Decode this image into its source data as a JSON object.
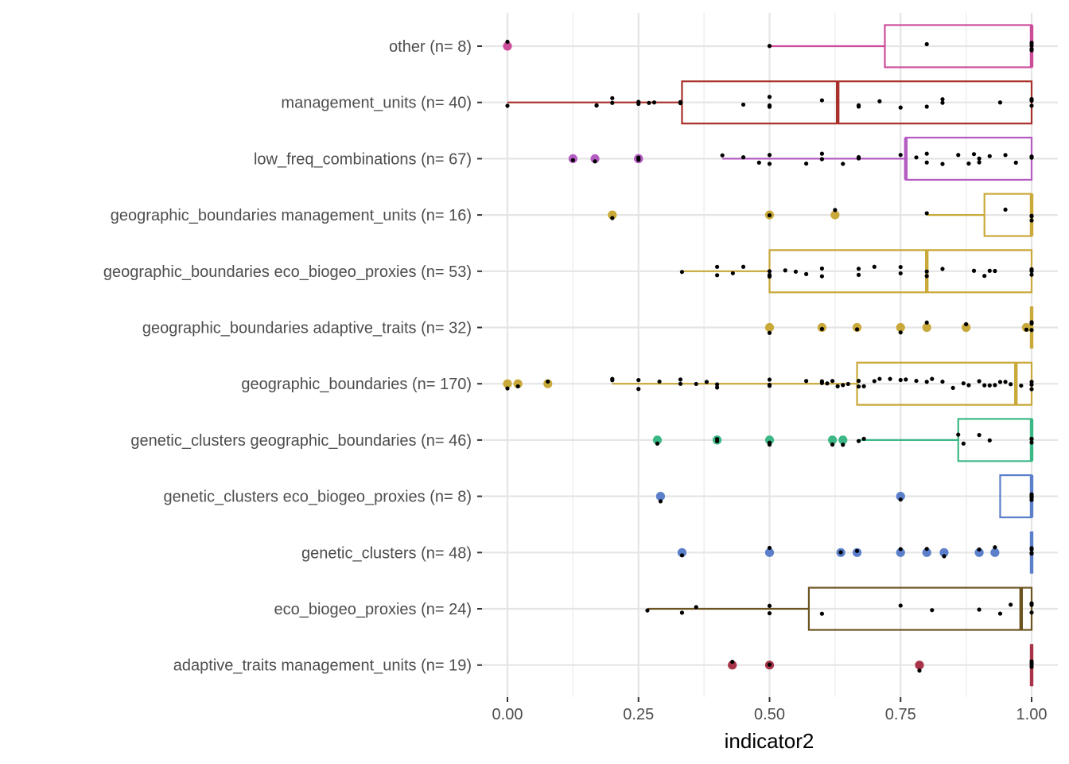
{
  "chart_data": {
    "type": "boxplot",
    "orientation": "horizontal",
    "xlabel": "indicator2",
    "ylabel": "",
    "xlim": [
      0,
      1
    ],
    "xticks": [
      0,
      0.25,
      0.5,
      0.75,
      1
    ],
    "xtick_labels": [
      "0.00",
      "0.25",
      "0.50",
      "0.75",
      "1.00"
    ],
    "legend": "none",
    "grid": true,
    "categories": [
      {
        "label": "other (n= 8)",
        "color": "#CC4C99",
        "box": {
          "q1": 0.72,
          "median": 1.0,
          "q3": 1.0,
          "whisker_low": 0.5,
          "whisker_high": 1.0
        },
        "outliers": [
          0.0
        ],
        "points": [
          0.0,
          0.5,
          0.8,
          1.0,
          1.0,
          1.0,
          1.0,
          1.0
        ]
      },
      {
        "label": "management_units (n= 40)",
        "color": "#A8302A",
        "box": {
          "q1": 0.333,
          "median": 0.63,
          "q3": 1.0,
          "whisker_low": 0.0,
          "whisker_high": 1.0
        },
        "outliers": [],
        "points": [
          0.0,
          0.17,
          0.17,
          0.2,
          0.2,
          0.25,
          0.25,
          0.27,
          0.28,
          0.33,
          0.33,
          0.45,
          0.5,
          0.5,
          0.5,
          0.6,
          0.67,
          0.67,
          0.71,
          0.75,
          0.8,
          0.83,
          0.83,
          0.94,
          1.0,
          1.0,
          1.0,
          1.0
        ]
      },
      {
        "label": "low_freq_combinations (n= 67)",
        "color": "#B45CC2",
        "box": {
          "q1": 0.76,
          "median": 0.76,
          "q3": 1.0,
          "whisker_low": 0.41,
          "whisker_high": 1.0
        },
        "outliers": [
          0.125,
          0.167,
          0.25,
          0.25,
          0.25
        ],
        "points": [
          0.125,
          0.167,
          0.25,
          0.25,
          0.25,
          0.41,
          0.45,
          0.48,
          0.5,
          0.5,
          0.57,
          0.6,
          0.6,
          0.64,
          0.67,
          0.67,
          0.75,
          0.78,
          0.8,
          0.8,
          0.83,
          0.86,
          0.88,
          0.89,
          0.9,
          0.9,
          0.92,
          0.95,
          0.97,
          1.0,
          1.0,
          1.0
        ]
      },
      {
        "label": "geographic_boundaries management_units (n= 16)",
        "color": "#C9A93A",
        "box": {
          "q1": 0.91,
          "median": 1.0,
          "q3": 1.0,
          "whisker_low": 0.8,
          "whisker_high": 1.0
        },
        "outliers": [
          0.2,
          0.5,
          0.625
        ],
        "points": [
          0.2,
          0.5,
          0.625,
          0.8,
          0.95,
          1.0,
          1.0,
          1.0
        ]
      },
      {
        "label": "geographic_boundaries eco_biogeo_proxies (n= 53)",
        "color": "#C9A93A",
        "box": {
          "q1": 0.5,
          "median": 0.8,
          "q3": 1.0,
          "whisker_low": 0.333,
          "whisker_high": 1.0
        },
        "outliers": [],
        "points": [
          0.333,
          0.4,
          0.4,
          0.43,
          0.45,
          0.5,
          0.5,
          0.5,
          0.5,
          0.53,
          0.55,
          0.57,
          0.6,
          0.6,
          0.67,
          0.67,
          0.7,
          0.75,
          0.75,
          0.8,
          0.8,
          0.83,
          0.89,
          0.91,
          0.92,
          0.93,
          1.0,
          1.0,
          1.0
        ]
      },
      {
        "label": "geographic_boundaries adaptive_traits (n= 32)",
        "color": "#C9A93A",
        "box": {
          "q1": 1.0,
          "median": 1.0,
          "q3": 1.0,
          "whisker_low": 1.0,
          "whisker_high": 1.0
        },
        "outliers": [
          0.5,
          0.6,
          0.667,
          0.75,
          0.8,
          0.875,
          0.99
        ],
        "points": [
          0.5,
          0.6,
          0.667,
          0.75,
          0.8,
          0.875,
          0.99,
          1.0,
          1.0,
          1.0,
          1.0
        ]
      },
      {
        "label": "geographic_boundaries (n= 170)",
        "color": "#C9A93A",
        "box": {
          "q1": 0.667,
          "median": 0.97,
          "q3": 1.0,
          "whisker_low": 0.2,
          "whisker_high": 1.0
        },
        "outliers": [
          0.0,
          0.02,
          0.077
        ],
        "points": [
          0.0,
          0.02,
          0.077,
          0.2,
          0.2,
          0.25,
          0.25,
          0.29,
          0.33,
          0.33,
          0.36,
          0.38,
          0.4,
          0.4,
          0.5,
          0.5,
          0.5,
          0.57,
          0.6,
          0.6,
          0.61,
          0.62,
          0.63,
          0.64,
          0.65,
          0.67,
          0.67,
          0.68,
          0.7,
          0.71,
          0.73,
          0.75,
          0.76,
          0.78,
          0.8,
          0.81,
          0.83,
          0.85,
          0.87,
          0.88,
          0.9,
          0.91,
          0.92,
          0.93,
          0.94,
          0.95,
          0.96,
          0.98,
          1.0,
          1.0,
          1.0
        ]
      },
      {
        "label": "genetic_clusters geographic_boundaries (n= 46)",
        "color": "#3CB886",
        "box": {
          "q1": 0.86,
          "median": 1.0,
          "q3": 1.0,
          "whisker_low": 0.67,
          "whisker_high": 1.0
        },
        "outliers": [
          0.286,
          0.4,
          0.4,
          0.5,
          0.62,
          0.64
        ],
        "points": [
          0.286,
          0.4,
          0.4,
          0.5,
          0.5,
          0.62,
          0.64,
          0.67,
          0.68,
          0.86,
          0.87,
          0.9,
          0.92,
          1.0,
          1.0,
          1.0
        ]
      },
      {
        "label": "genetic_clusters eco_biogeo_proxies (n= 8)",
        "color": "#5B7FCB",
        "box": {
          "q1": 0.94,
          "median": 1.0,
          "q3": 1.0,
          "whisker_low": 0.94,
          "whisker_high": 1.0
        },
        "outliers": [
          0.292,
          0.75
        ],
        "points": [
          0.292,
          0.75,
          1.0,
          1.0,
          1.0,
          1.0,
          1.0,
          1.0
        ]
      },
      {
        "label": "genetic_clusters (n= 48)",
        "color": "#5B7FCB",
        "box": {
          "q1": 1.0,
          "median": 1.0,
          "q3": 1.0,
          "whisker_low": 1.0,
          "whisker_high": 1.0
        },
        "outliers": [
          0.333,
          0.5,
          0.636,
          0.667,
          0.75,
          0.8,
          0.833,
          0.9,
          0.93
        ],
        "points": [
          0.333,
          0.5,
          0.636,
          0.667,
          0.75,
          0.8,
          0.833,
          0.9,
          0.93,
          1.0,
          1.0,
          1.0,
          1.0
        ]
      },
      {
        "label": "eco_biogeo_proxies (n= 24)",
        "color": "#6B5420",
        "box": {
          "q1": 0.575,
          "median": 0.98,
          "q3": 1.0,
          "whisker_low": 0.267,
          "whisker_high": 1.0
        },
        "outliers": [],
        "points": [
          0.267,
          0.333,
          0.36,
          0.5,
          0.5,
          0.6,
          0.75,
          0.81,
          0.9,
          0.94,
          0.96,
          1.0,
          1.0,
          1.0
        ]
      },
      {
        "label": "adaptive_traits management_units (n= 19)",
        "color": "#A8344A",
        "box": {
          "q1": 1.0,
          "median": 1.0,
          "q3": 1.0,
          "whisker_low": 1.0,
          "whisker_high": 1.0
        },
        "outliers": [
          0.429,
          0.5,
          0.786
        ],
        "points": [
          0.429,
          0.5,
          0.786,
          1.0,
          1.0,
          1.0,
          1.0
        ]
      }
    ]
  }
}
